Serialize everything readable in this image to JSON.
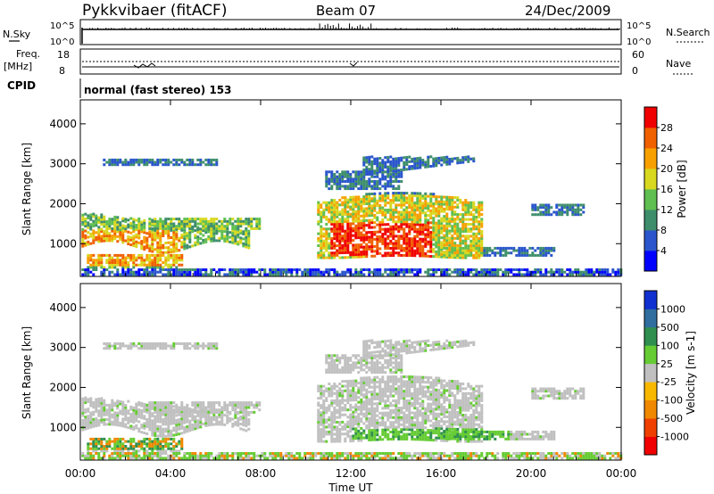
{
  "header": {
    "station": "Pykkvibaer (fitACF)",
    "beam": "Beam 07",
    "date": "24/Dec/2009"
  },
  "aux_panels": {
    "nsky_label": "N.Sky",
    "nsky_ticks": [
      "10^5",
      "10^0"
    ],
    "nsearch_label": "N.Search",
    "nsearch_ticks": [
      "10^5",
      "10^0"
    ],
    "freq_label": "Freq.",
    "freq_unit": "[MHz]",
    "freq_ticks": [
      "18",
      "8"
    ],
    "nave_label": "Nave",
    "nave_ticks": [
      "60",
      "0"
    ],
    "cpid_label": "CPID",
    "cpid_value": "normal (fast stereo) 153"
  },
  "chart_data": [
    {
      "type": "heatmap",
      "name": "power-panel",
      "ylabel": "Slant Range [km]",
      "ylim": [
        180,
        4600
      ],
      "yticks": [
        1000,
        2000,
        3000,
        4000
      ],
      "xlim": [
        0,
        24
      ],
      "colorbar": {
        "label": "Power [dB]",
        "ticks": [
          "4",
          "8",
          "12",
          "16",
          "20",
          "24",
          "28"
        ],
        "colors": [
          "#0000ff",
          "#2a55cc",
          "#3e8e6c",
          "#5fbf50",
          "#d8d820",
          "#f8a000",
          "#f06000",
          "#f00000"
        ]
      }
    },
    {
      "type": "heatmap",
      "name": "velocity-panel",
      "ylabel": "Slant Range [km]",
      "ylim": [
        180,
        4600
      ],
      "yticks": [
        1000,
        2000,
        3000,
        4000
      ],
      "xlim": [
        0,
        24
      ],
      "colorbar": {
        "label": "Velocity [m s-1]",
        "ticks": [
          "1000",
          "500",
          "100",
          "25",
          "-25",
          "-100",
          "-500",
          "-1000"
        ],
        "colors": [
          "#1030d0",
          "#2f6e9e",
          "#2f8f4f",
          "#66cc33",
          "#c0c0c0",
          "#f8b800",
          "#f08800",
          "#f04000",
          "#f00000"
        ]
      },
      "xlabel": "Time UT",
      "xticks": [
        "00:00",
        "04:00",
        "08:00",
        "12:00",
        "16:00",
        "20:00",
        "00:00"
      ]
    }
  ]
}
